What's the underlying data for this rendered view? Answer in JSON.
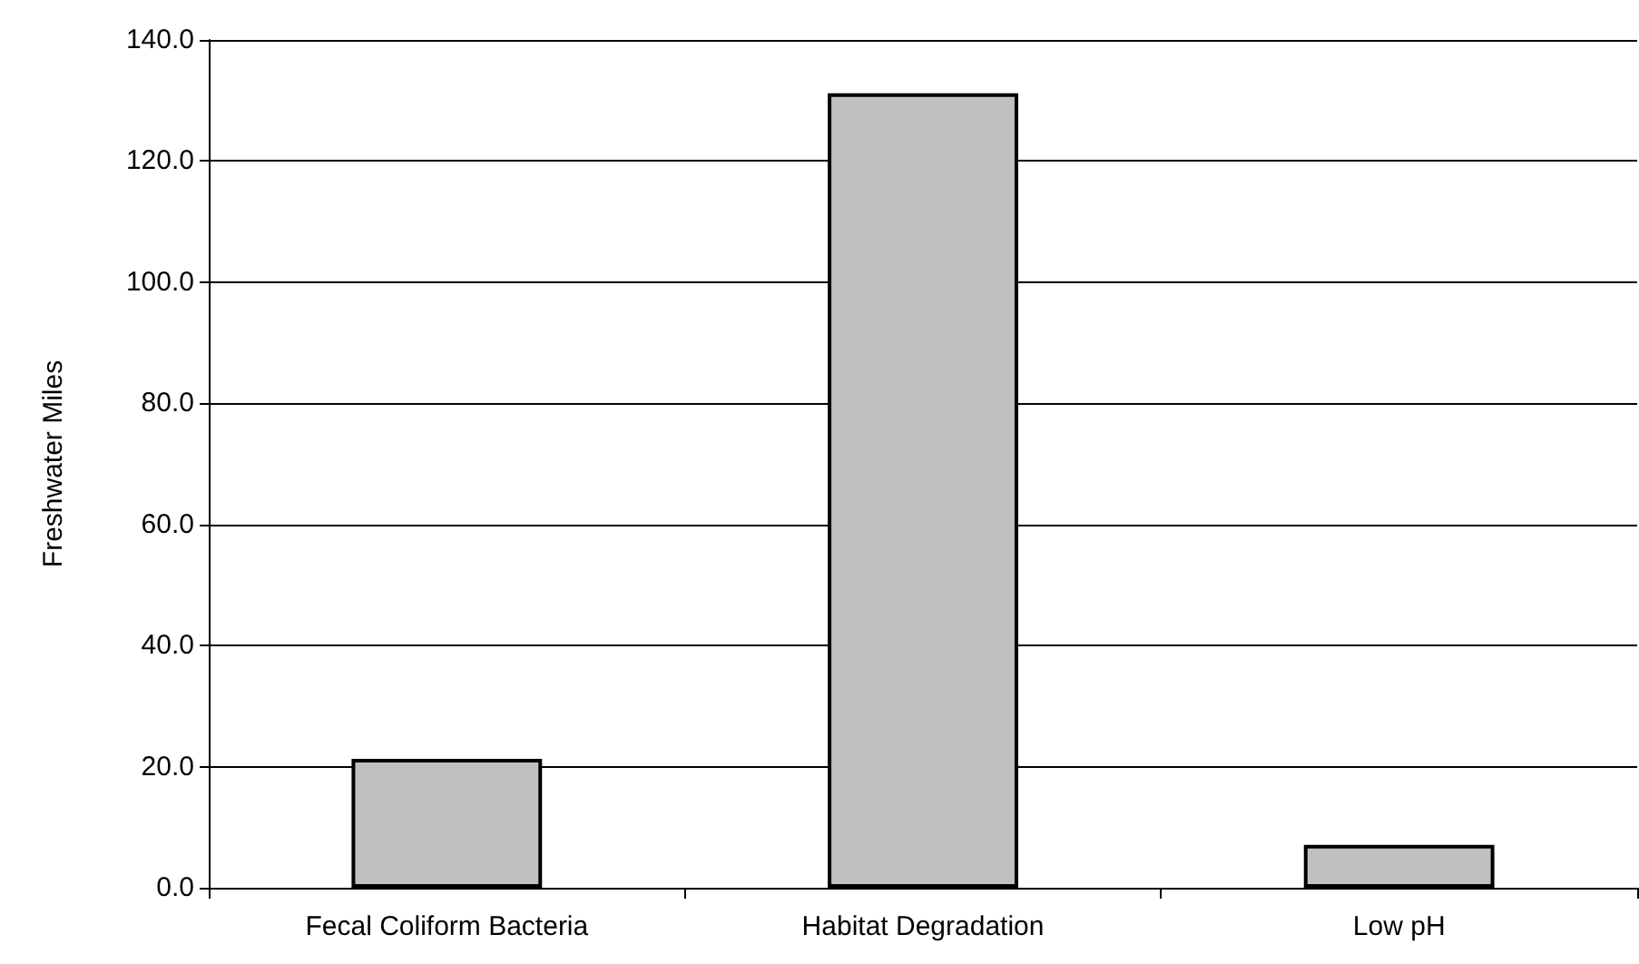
{
  "chart_data": {
    "type": "bar",
    "ylabel": "Freshwater Miles",
    "categories": [
      "Fecal Coliform Bacteria",
      "Habitat Degradation",
      "Low pH"
    ],
    "values": [
      21.3,
      131.2,
      7.1
    ],
    "color": "#c0c0c0",
    "ylim": [
      0,
      140
    ],
    "yticks": [
      {
        "value": 0,
        "label": "0.0"
      },
      {
        "value": 20,
        "label": "20.0"
      },
      {
        "value": 40,
        "label": "40.0"
      },
      {
        "value": 60,
        "label": "60.0"
      },
      {
        "value": 80,
        "label": "80.0"
      },
      {
        "value": 100,
        "label": "100.0"
      },
      {
        "value": 120,
        "label": "120.0"
      },
      {
        "value": 140,
        "label": "140.0"
      }
    ],
    "grid": "y"
  }
}
